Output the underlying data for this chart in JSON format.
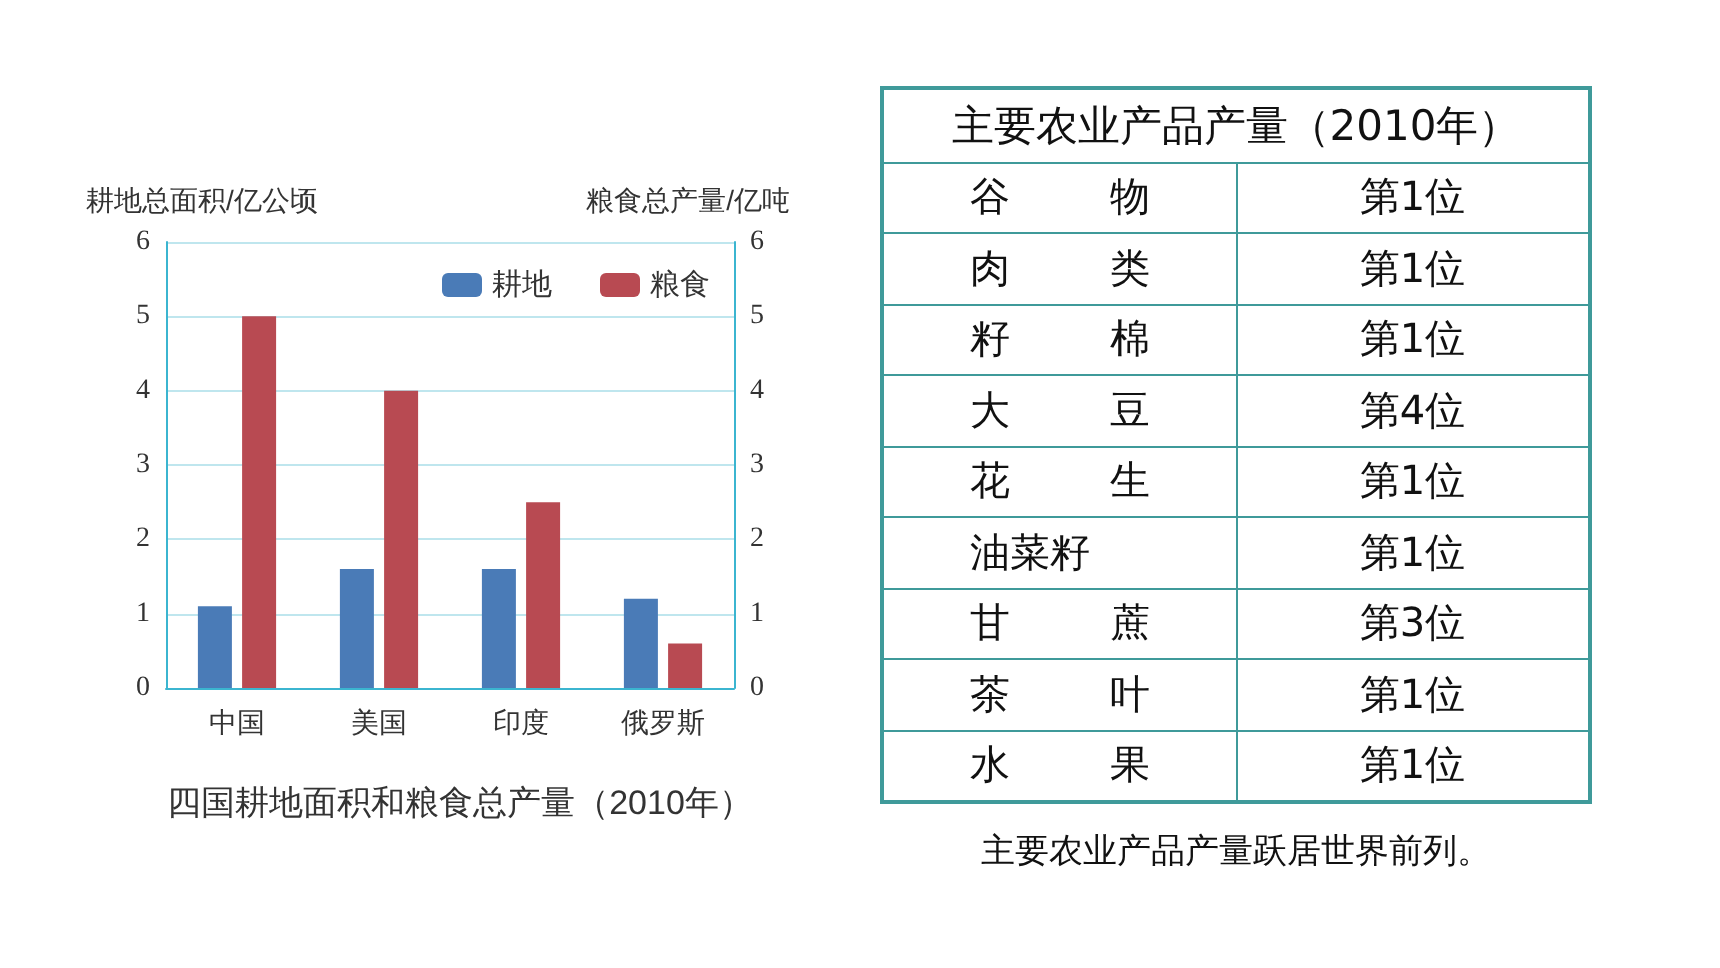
{
  "chart_data": [
    {
      "type": "bar",
      "title": "四国耕地面积和粮食总产量（2010年）",
      "ylabel": "耕地总面积/亿公顷",
      "y2label": "粮食总产量/亿吨",
      "categories": [
        "中国",
        "美国",
        "印度",
        "俄罗斯"
      ],
      "series": [
        {
          "name": "耕地",
          "color": "#4a7bb7",
          "values": [
            1.1,
            1.6,
            1.6,
            1.2
          ]
        },
        {
          "name": "粮食",
          "color": "#b84a52",
          "axis": "y2",
          "values": [
            5.0,
            4.0,
            2.5,
            0.6
          ]
        }
      ],
      "ylim": [
        0,
        6
      ],
      "yticks": [
        0,
        1,
        2,
        3,
        4,
        5,
        6
      ],
      "y2lim": [
        0,
        6
      ],
      "y2ticks": [
        0,
        1,
        2,
        3,
        4,
        5,
        6
      ],
      "grid": "y",
      "legend": "top right"
    },
    {
      "type": "other",
      "title": "主要农业产品产量（2010年）",
      "categories": [
        "谷物",
        "肉类",
        "籽棉",
        "大豆",
        "花生",
        "油菜籽",
        "甘蔗",
        "茶叶",
        "水果"
      ],
      "value_labels": [
        "第1位",
        "第1位",
        "第1位",
        "第4位",
        "第1位",
        "第1位",
        "第3位",
        "第1位",
        "第1位"
      ],
      "annotations": [
        "主要农业产品产量跃居世界前列。"
      ]
    }
  ]
}
